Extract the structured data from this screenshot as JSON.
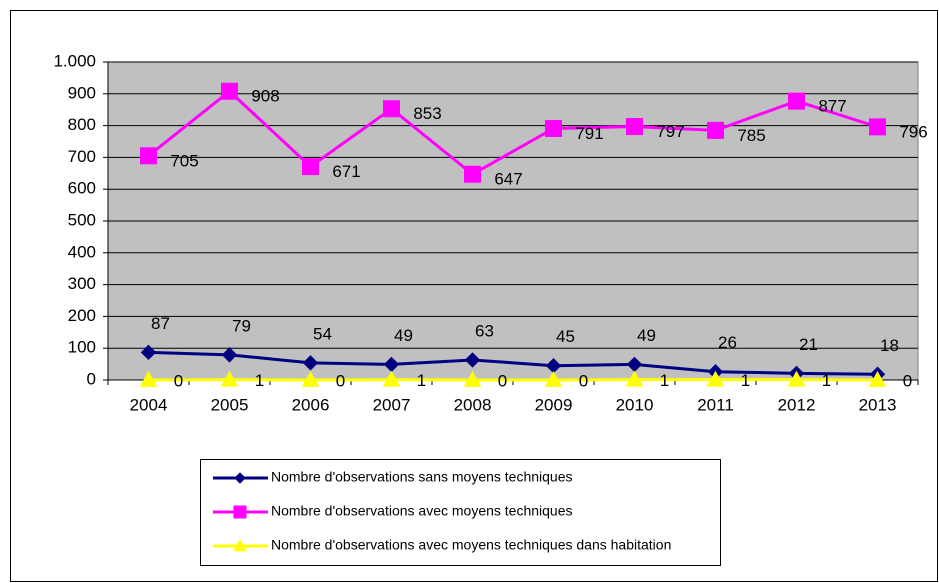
{
  "chart_data": {
    "type": "line",
    "categories": [
      "2004",
      "2005",
      "2006",
      "2007",
      "2008",
      "2009",
      "2010",
      "2011",
      "2012",
      "2013"
    ],
    "series": [
      {
        "name": "Nombre d'observations sans moyens techniques",
        "color": "#000080",
        "marker": "diamond",
        "values": [
          87,
          79,
          54,
          49,
          63,
          45,
          49,
          26,
          21,
          18
        ]
      },
      {
        "name": "Nombre d'observations avec moyens techniques",
        "color": "#ff00ff",
        "marker": "square",
        "values": [
          705,
          908,
          671,
          853,
          647,
          791,
          797,
          785,
          877,
          796
        ]
      },
      {
        "name": "Nombre d'observations avec moyens techniques dans habitation",
        "color": "#ffff00",
        "marker": "triangle",
        "values": [
          0,
          1,
          0,
          1,
          0,
          0,
          1,
          1,
          1,
          0
        ]
      }
    ],
    "ylim": [
      0,
      1000
    ],
    "yticks": [
      0,
      100,
      200,
      300,
      400,
      500,
      600,
      700,
      800,
      900,
      {
        "value": 1000,
        "label": "1.000"
      }
    ],
    "grid": true,
    "legend": "bottom"
  }
}
